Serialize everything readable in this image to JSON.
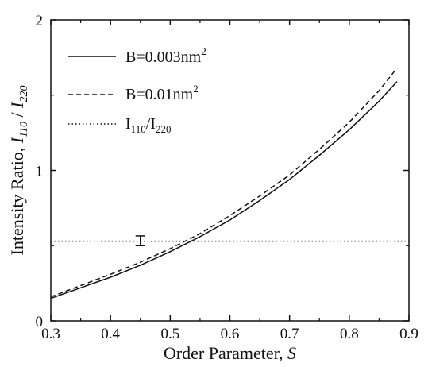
{
  "chart_data": {
    "type": "line",
    "title": "",
    "xlabel": "Order Parameter, S",
    "xlabel_parts": {
      "prefix": "Order Parameter, ",
      "symbol": "S"
    },
    "ylabel": "Intensity Ratio, I110 / I220",
    "ylabel_parts": {
      "prefix": "Intensity Ratio, ",
      "sym1": "I",
      "sub1": "110",
      "sep": " / ",
      "sym2": "I",
      "sub2": "220"
    },
    "xlim": [
      0.3,
      0.9
    ],
    "ylim": [
      0,
      2
    ],
    "xticks": [
      "0.3",
      "0.4",
      "0.5",
      "0.6",
      "0.7",
      "0.8",
      "0.9"
    ],
    "yticks": [
      "0",
      "1",
      "2"
    ],
    "grid": false,
    "legend_position": "top-left",
    "series": [
      {
        "name": "B=0.003nm2",
        "label_main": "B=0.003nm",
        "label_sup": "2",
        "style": "solid",
        "x": [
          0.3,
          0.35,
          0.4,
          0.45,
          0.5,
          0.55,
          0.6,
          0.65,
          0.7,
          0.75,
          0.8,
          0.85,
          0.88
        ],
        "y": [
          0.15,
          0.22,
          0.29,
          0.37,
          0.46,
          0.56,
          0.67,
          0.8,
          0.94,
          1.1,
          1.27,
          1.46,
          1.59
        ]
      },
      {
        "name": "B=0.01nm2",
        "label_main": "B=0.01nm",
        "label_sup": "2",
        "style": "dashed",
        "x": [
          0.3,
          0.35,
          0.4,
          0.45,
          0.5,
          0.55,
          0.6,
          0.65,
          0.7,
          0.75,
          0.8,
          0.85,
          0.88
        ],
        "y": [
          0.16,
          0.235,
          0.31,
          0.39,
          0.48,
          0.58,
          0.7,
          0.83,
          0.97,
          1.14,
          1.32,
          1.53,
          1.68
        ]
      },
      {
        "name": "I110/I220",
        "label_parts": {
          "a": "I",
          "a_sub": "110",
          "sep": "/",
          "b": "I",
          "b_sub": "220"
        },
        "style": "dotted",
        "x": [
          0.3,
          0.9
        ],
        "y": [
          0.53,
          0.53
        ]
      }
    ],
    "error_bar": {
      "x": 0.45,
      "y": 0.535,
      "low": 0.5,
      "high": 0.565
    }
  },
  "colors": {
    "line": "#111111",
    "axis": "#111111",
    "background": "#ffffff"
  }
}
